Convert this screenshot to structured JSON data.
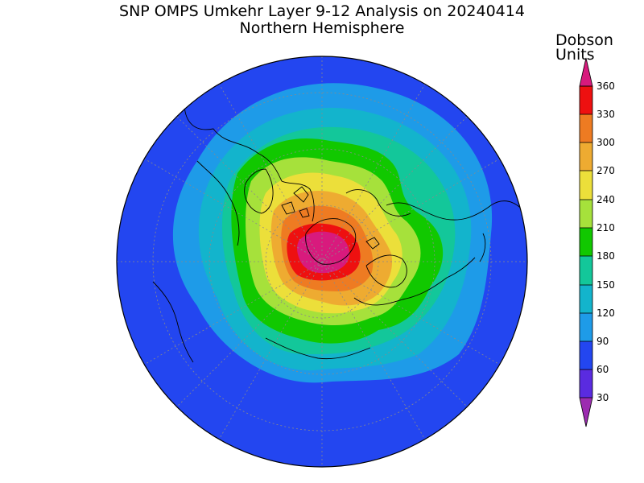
{
  "title": "SNP OMPS Umkehr Layer 9-12 Analysis on 20240414",
  "subtitle": "Northern Hemisphere",
  "units_line1": "Dobson",
  "units_line2": "Units",
  "legend": {
    "ticks": [
      "360",
      "330",
      "300",
      "270",
      "240",
      "210",
      "180",
      "150",
      "120",
      "90",
      "60",
      "30"
    ],
    "colors": {
      "under": "#9c2cb0",
      "b0_30": "#7a00d2",
      "b30_60": "#5a2be0",
      "b60_90": "#2346f0",
      "b90_120": "#1e9be8",
      "b120_150": "#13b4cc",
      "b150_180": "#13c79a",
      "b180_210": "#11c800",
      "b210_240": "#a6e13b",
      "b240_270": "#ecdf3a",
      "b270_300": "#eeab31",
      "b300_330": "#ee7b22",
      "b330_360": "#ee1010",
      "over": "#d81a7d"
    }
  },
  "map": {
    "projection": "north polar stereographic",
    "field": "ozone column layers 9-12",
    "field_colors": {
      "outer": "#2346f0",
      "ring1": "#1e9be8",
      "ring2": "#13b4cc",
      "ring3": "#13c79a",
      "ring4": "#11c800",
      "ring5": "#a6e13b",
      "ring6": "#ecdf3a",
      "ring7": "#eeab31",
      "ring8": "#ee7b22",
      "ring9": "#ee1010",
      "core": "#d81a7d"
    }
  }
}
